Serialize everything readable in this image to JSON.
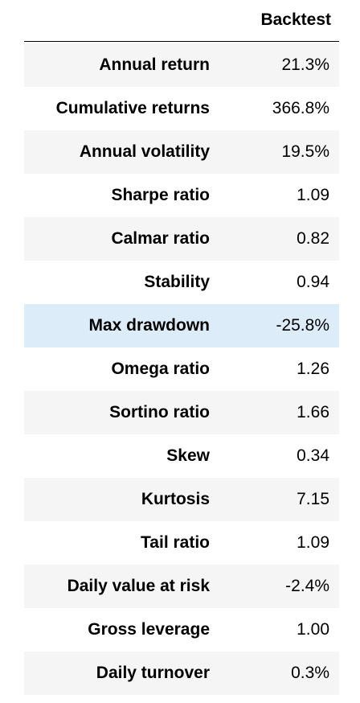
{
  "table": {
    "column_header": "Backtest",
    "rows": [
      {
        "label": "Annual return",
        "value": "21.3%"
      },
      {
        "label": "Cumulative returns",
        "value": "366.8%"
      },
      {
        "label": "Annual volatility",
        "value": "19.5%"
      },
      {
        "label": "Sharpe ratio",
        "value": "1.09"
      },
      {
        "label": "Calmar ratio",
        "value": "0.82"
      },
      {
        "label": "Stability",
        "value": "0.94"
      },
      {
        "label": "Max drawdown",
        "value": "-25.8%"
      },
      {
        "label": "Omega ratio",
        "value": "1.26"
      },
      {
        "label": "Sortino ratio",
        "value": "1.66"
      },
      {
        "label": "Skew",
        "value": "0.34"
      },
      {
        "label": "Kurtosis",
        "value": "7.15"
      },
      {
        "label": "Tail ratio",
        "value": "1.09"
      },
      {
        "label": "Daily value at risk",
        "value": "-2.4%"
      },
      {
        "label": "Gross leverage",
        "value": "1.00"
      },
      {
        "label": "Daily turnover",
        "value": "0.3%"
      }
    ]
  },
  "colors": {
    "row_shaded": "#f5f5f5",
    "row_highlight": "#dcedf9",
    "header_rule": "#000000"
  }
}
